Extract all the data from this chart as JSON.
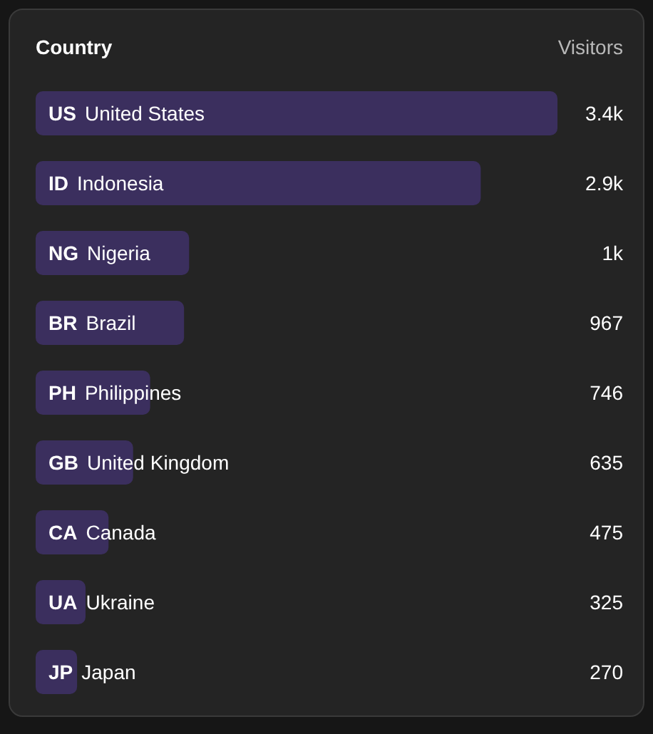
{
  "chart_data": {
    "type": "bar",
    "orientation": "horizontal",
    "ylabel": "Country",
    "xlabel": "Visitors",
    "categories": [
      "US United States",
      "ID Indonesia",
      "NG Nigeria",
      "BR Brazil",
      "PH Philippines",
      "GB United Kingdom",
      "CA Canada",
      "UA Ukraine",
      "JP Japan"
    ],
    "values": [
      3400,
      2900,
      1000,
      967,
      746,
      635,
      475,
      325,
      270
    ],
    "value_labels": [
      "3.4k",
      "2.9k",
      "1k",
      "967",
      "746",
      "635",
      "475",
      "325",
      "270"
    ],
    "color": "#3b2f5e",
    "tick_labels": false,
    "grid": false,
    "legend": false
  }
}
